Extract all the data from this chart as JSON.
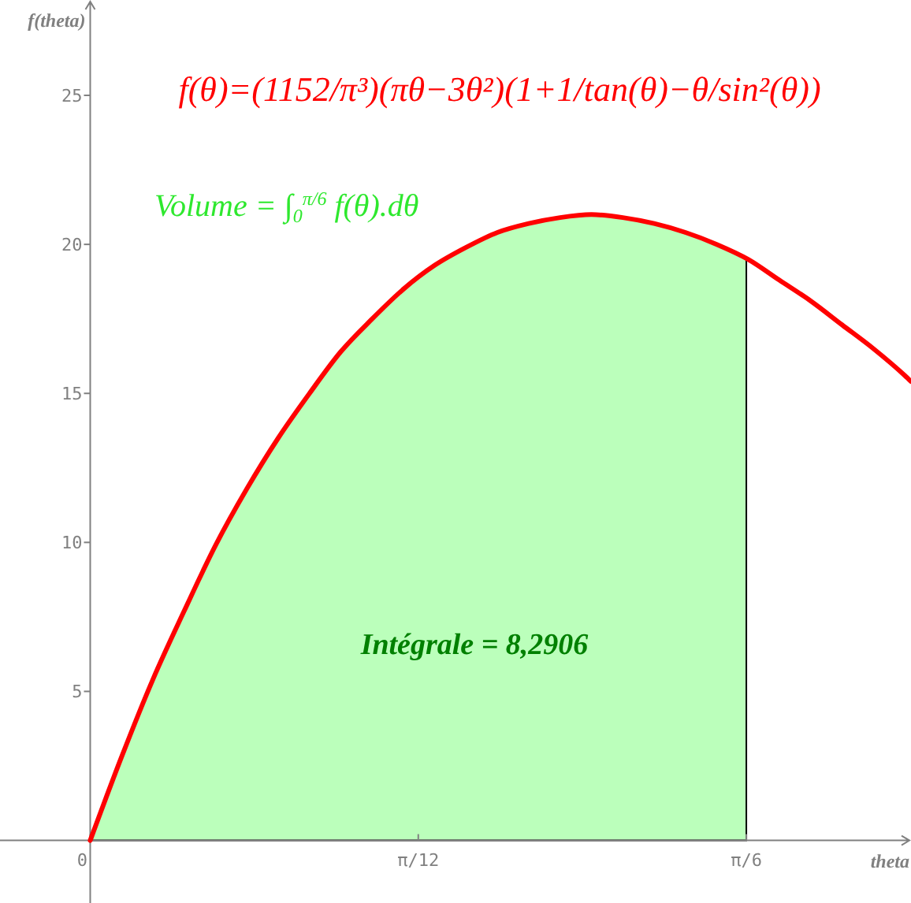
{
  "chart_data": {
    "type": "line",
    "xlabel": "theta",
    "ylabel": "f(theta)",
    "annotations": [
      "f(θ)=(1152/π³)(πθ−3θ²)(1+1/tan(θ)−θ/sin²(θ))",
      "Volume = ∫$_{0}$$^{π/6}$ f(θ).dθ",
      "Intégrale = 8,2906"
    ],
    "xlim": [
      -0.072,
      0.655
    ],
    "ylim": [
      -2.1,
      28.2
    ],
    "xticks": [
      0,
      {
        "value": 0.2618,
        "label": "π/12"
      },
      {
        "value": 0.5236,
        "label": "π/6"
      }
    ],
    "yticks": [
      5,
      10,
      15,
      20,
      25
    ],
    "series": [
      {
        "type": "area",
        "color": "#bbffbb",
        "x": [
          0,
          0.025,
          0.05,
          0.075,
          0.1,
          0.125,
          0.15,
          0.175,
          0.2,
          0.225,
          0.25,
          0.275,
          0.3,
          0.325,
          0.35,
          0.375,
          0.4,
          0.425,
          0.45,
          0.475,
          0.5,
          0.5236
        ],
        "values": [
          0,
          2.8,
          5.4,
          7.7,
          9.9,
          11.8,
          13.5,
          15.0,
          16.4,
          17.5,
          18.5,
          19.3,
          19.9,
          20.4,
          20.7,
          20.9,
          21.0,
          20.9,
          20.7,
          20.4,
          20.0,
          19.5
        ]
      },
      {
        "type": "line",
        "color": "#ff0000",
        "x": [
          0,
          0.025,
          0.05,
          0.075,
          0.1,
          0.125,
          0.15,
          0.175,
          0.2,
          0.225,
          0.25,
          0.275,
          0.3,
          0.325,
          0.35,
          0.375,
          0.4,
          0.425,
          0.45,
          0.475,
          0.5,
          0.525,
          0.55,
          0.575,
          0.6,
          0.625,
          0.65,
          0.655
        ],
        "values": [
          0,
          2.8,
          5.4,
          7.7,
          9.9,
          11.8,
          13.5,
          15.0,
          16.4,
          17.5,
          18.5,
          19.3,
          19.9,
          20.4,
          20.7,
          20.9,
          21.0,
          20.9,
          20.7,
          20.4,
          20.0,
          19.5,
          18.8,
          18.1,
          17.3,
          16.5,
          15.6,
          15.4
        ]
      }
    ]
  }
}
